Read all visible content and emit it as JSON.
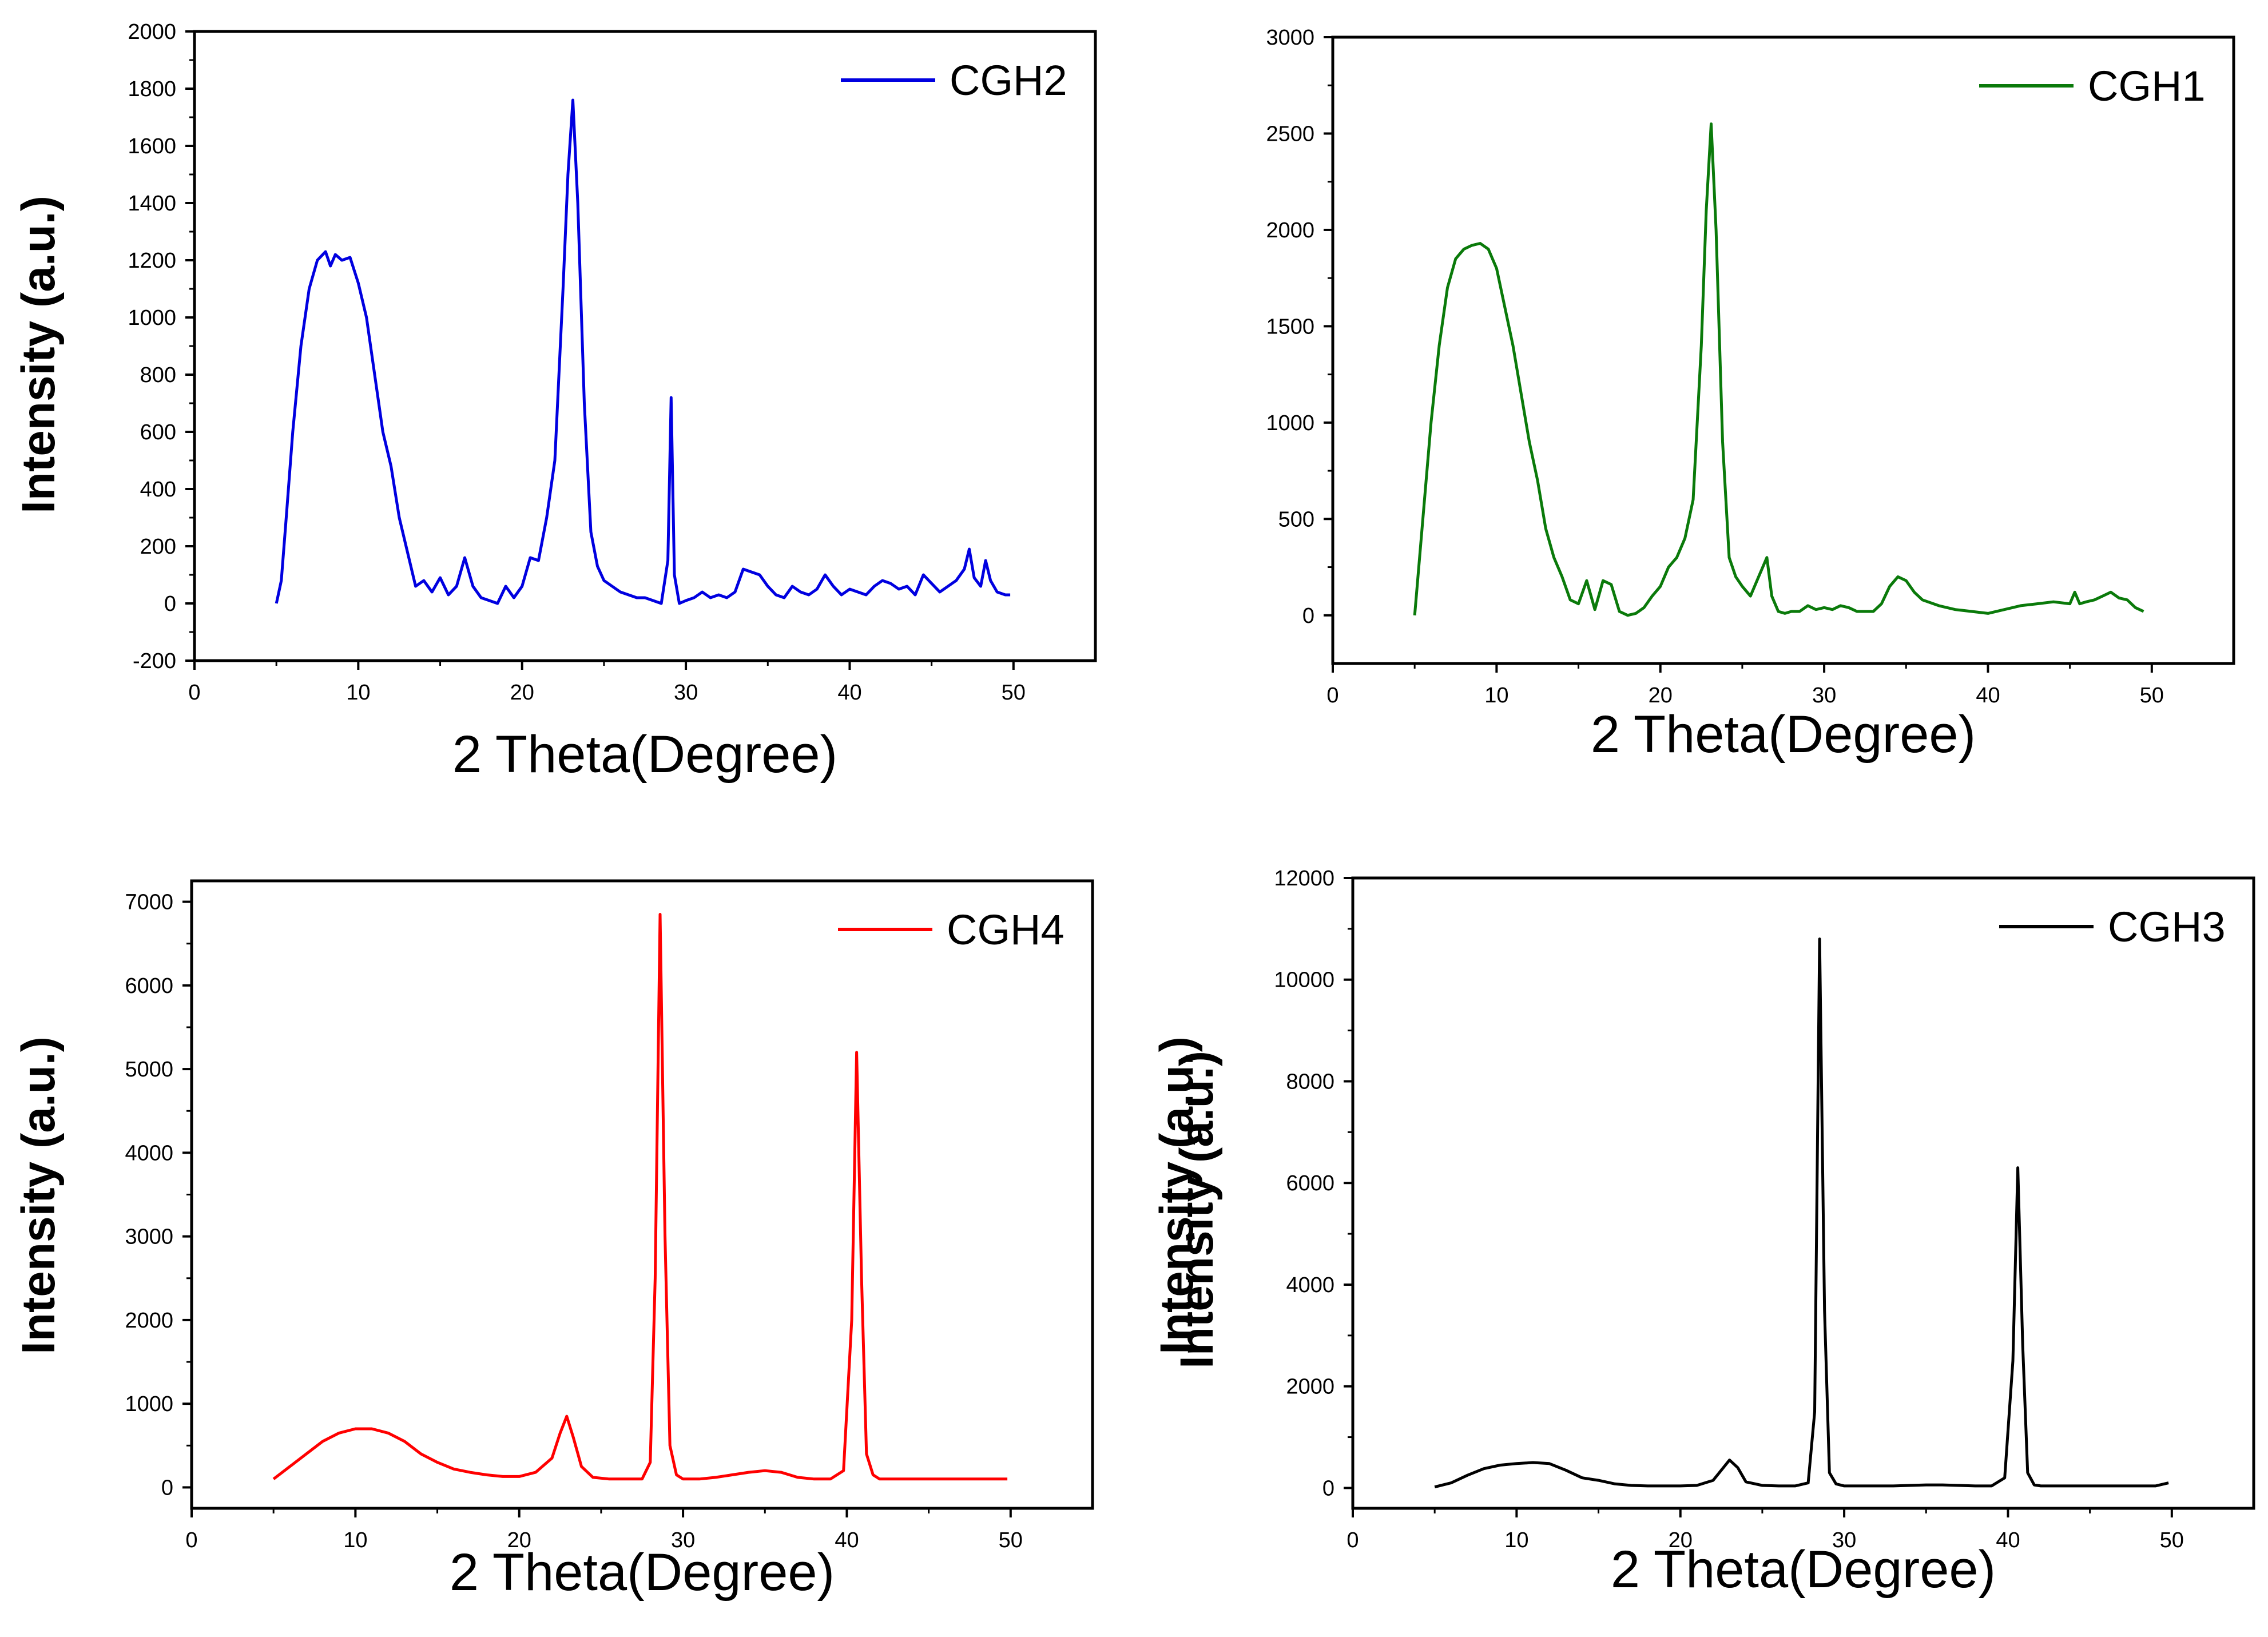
{
  "chart_data": [
    {
      "type": "line",
      "panel": "top-left",
      "legend": "CGH2",
      "color": "#0000e0",
      "xlabel": "2 Theta(Degree)",
      "ylabel": "Intensity (a.u.)",
      "xlim": [
        0,
        55
      ],
      "ylim": [
        -200,
        2000
      ],
      "xticks": [
        0,
        10,
        20,
        30,
        40,
        50
      ],
      "yticks": [
        -200,
        0,
        200,
        400,
        600,
        800,
        1000,
        1200,
        1400,
        1600,
        1800,
        2000
      ],
      "ytick_labels": [
        "-200",
        "0",
        "200",
        "400",
        "600",
        "800",
        "1000",
        "1200",
        "1400",
        "1600",
        "1800",
        "2000"
      ],
      "legend_position": "top-right",
      "x": [
        5.0,
        5.3,
        5.6,
        6.0,
        6.5,
        7.0,
        7.5,
        8.0,
        8.3,
        8.6,
        9.0,
        9.5,
        10.0,
        10.5,
        11.0,
        11.5,
        12.0,
        12.5,
        13.0,
        13.5,
        14.0,
        14.5,
        15.0,
        15.5,
        16.0,
        16.5,
        17.0,
        17.5,
        18.0,
        18.5,
        19.0,
        19.5,
        20.0,
        20.5,
        21.0,
        21.5,
        22.0,
        22.5,
        22.8,
        23.1,
        23.4,
        23.8,
        24.2,
        24.6,
        25.0,
        25.5,
        26.0,
        26.5,
        27.0,
        27.5,
        28.0,
        28.5,
        28.9,
        29.1,
        29.3,
        29.6,
        30.0,
        30.5,
        31.0,
        31.5,
        32.0,
        32.5,
        33.0,
        33.5,
        34.0,
        34.5,
        35.0,
        35.5,
        36.0,
        36.5,
        37.0,
        37.5,
        38.0,
        38.5,
        39.0,
        39.5,
        40.0,
        40.5,
        41.0,
        41.5,
        42.0,
        42.5,
        43.0,
        43.5,
        44.0,
        44.5,
        45.0,
        45.5,
        46.0,
        46.5,
        47.0,
        47.3,
        47.6,
        48.0,
        48.3,
        48.6,
        49.0,
        49.5,
        49.8
      ],
      "values": [
        0,
        80,
        300,
        600,
        900,
        1100,
        1200,
        1230,
        1180,
        1220,
        1200,
        1210,
        1120,
        1000,
        800,
        600,
        480,
        300,
        180,
        60,
        80,
        40,
        90,
        30,
        60,
        160,
        60,
        20,
        10,
        0,
        60,
        20,
        60,
        160,
        150,
        300,
        500,
        1100,
        1500,
        1760,
        1400,
        700,
        250,
        130,
        80,
        60,
        40,
        30,
        20,
        20,
        10,
        0,
        150,
        720,
        100,
        0,
        10,
        20,
        40,
        20,
        30,
        20,
        40,
        120,
        110,
        100,
        60,
        30,
        20,
        60,
        40,
        30,
        50,
        100,
        60,
        30,
        50,
        40,
        30,
        60,
        80,
        70,
        50,
        60,
        30,
        100,
        70,
        40,
        60,
        80,
        120,
        190,
        90,
        60,
        150,
        80,
        40,
        30,
        30
      ]
    },
    {
      "type": "line",
      "panel": "top-right",
      "legend": "CGH1",
      "color": "#0a7a0a",
      "xlabel": "2 Theta(Degree)",
      "ylabel": "Intensity (a.u.)",
      "xlim": [
        0,
        55
      ],
      "ylim": [
        -250,
        3000
      ],
      "xticks": [
        0,
        10,
        20,
        30,
        40,
        50
      ],
      "yticks": [
        0,
        500,
        1000,
        1500,
        2000,
        2500,
        3000
      ],
      "ytick_labels": [
        "0",
        "500",
        "1000",
        "1500",
        "2000",
        "2500",
        "3000"
      ],
      "legend_position": "top-right",
      "x": [
        5.0,
        5.5,
        6.0,
        6.5,
        7.0,
        7.5,
        8.0,
        8.5,
        9.0,
        9.5,
        10.0,
        10.5,
        11.0,
        11.5,
        12.0,
        12.5,
        13.0,
        13.5,
        14.0,
        14.5,
        15.0,
        15.5,
        16.0,
        16.5,
        17.0,
        17.5,
        18.0,
        18.5,
        19.0,
        19.5,
        20.0,
        20.5,
        21.0,
        21.5,
        22.0,
        22.5,
        22.8,
        23.1,
        23.4,
        23.8,
        24.2,
        24.6,
        25.0,
        25.5,
        26.0,
        26.5,
        26.8,
        27.2,
        27.6,
        28.0,
        28.5,
        29.0,
        29.5,
        30.0,
        30.5,
        31.0,
        31.5,
        32.0,
        32.5,
        33.0,
        33.5,
        34.0,
        34.5,
        35.0,
        35.5,
        36.0,
        37.0,
        38.0,
        39.0,
        40.0,
        41.0,
        42.0,
        43.0,
        44.0,
        45.0,
        45.3,
        45.6,
        46.0,
        46.5,
        47.0,
        47.5,
        48.0,
        48.5,
        49.0,
        49.5
      ],
      "values": [
        0,
        500,
        1000,
        1400,
        1700,
        1850,
        1900,
        1920,
        1930,
        1900,
        1800,
        1600,
        1400,
        1150,
        900,
        700,
        450,
        300,
        200,
        80,
        60,
        180,
        30,
        180,
        160,
        20,
        0,
        10,
        40,
        100,
        150,
        250,
        300,
        400,
        600,
        1400,
        2100,
        2550,
        2000,
        900,
        300,
        200,
        150,
        100,
        200,
        300,
        100,
        20,
        10,
        20,
        20,
        50,
        30,
        40,
        30,
        50,
        40,
        20,
        20,
        20,
        60,
        150,
        200,
        180,
        120,
        80,
        50,
        30,
        20,
        10,
        30,
        50,
        60,
        70,
        60,
        120,
        60,
        70,
        80,
        100,
        120,
        90,
        80,
        40,
        20
      ]
    },
    {
      "type": "line",
      "panel": "bottom-left",
      "legend": "CGH4",
      "color": "#ff0000",
      "xlabel": "2 Theta(Degree)",
      "ylabel": "Intensity (a.u.)",
      "xlim": [
        0,
        55
      ],
      "ylim": [
        -250,
        7250
      ],
      "xticks": [
        0,
        10,
        20,
        30,
        40,
        50
      ],
      "yticks": [
        0,
        1000,
        2000,
        3000,
        4000,
        5000,
        6000,
        7000
      ],
      "ytick_labels": [
        "0",
        "1000",
        "2000",
        "3000",
        "4000",
        "5000",
        "6000",
        "7000"
      ],
      "legend_position": "top-right",
      "x": [
        5.0,
        6.0,
        7.0,
        8.0,
        9.0,
        10.0,
        11.0,
        12.0,
        13.0,
        14.0,
        15.0,
        16.0,
        17.0,
        18.0,
        19.0,
        20.0,
        21.0,
        22.0,
        22.5,
        22.9,
        23.3,
        23.8,
        24.5,
        25.5,
        26.5,
        27.5,
        28.0,
        28.3,
        28.6,
        28.9,
        29.2,
        29.6,
        30.0,
        31.0,
        32.0,
        33.0,
        34.0,
        35.0,
        36.0,
        37.0,
        38.0,
        39.0,
        39.8,
        40.3,
        40.6,
        40.9,
        41.2,
        41.6,
        42.0,
        43.0,
        44.0,
        45.0,
        46.0,
        47.0,
        48.0,
        49.0,
        49.8
      ],
      "values": [
        100,
        250,
        400,
        550,
        650,
        700,
        700,
        650,
        550,
        400,
        300,
        220,
        180,
        150,
        130,
        130,
        180,
        350,
        650,
        850,
        600,
        250,
        120,
        100,
        100,
        100,
        300,
        2500,
        6850,
        3000,
        500,
        150,
        100,
        100,
        120,
        150,
        180,
        200,
        180,
        120,
        100,
        100,
        200,
        2000,
        5200,
        2500,
        400,
        150,
        100,
        100,
        100,
        100,
        100,
        100,
        100,
        100,
        100
      ]
    },
    {
      "type": "line",
      "panel": "bottom-right",
      "legend": "CGH3",
      "color": "#000000",
      "xlabel": "2 Theta(Degree)",
      "ylabel": "Intensity (a.u.)",
      "xlim": [
        0,
        55
      ],
      "ylim": [
        -400,
        12000
      ],
      "xticks": [
        0,
        10,
        20,
        30,
        40,
        50
      ],
      "yticks": [
        0,
        2000,
        4000,
        6000,
        8000,
        10000,
        12000
      ],
      "ytick_labels": [
        "0",
        "2000",
        "4000",
        "6000",
        "8000",
        "10000",
        "12000"
      ],
      "legend_position": "top-right",
      "x": [
        5.0,
        6.0,
        7.0,
        8.0,
        9.0,
        10.0,
        11.0,
        12.0,
        13.0,
        14.0,
        15.0,
        16.0,
        17.0,
        18.0,
        19.0,
        20.0,
        21.0,
        22.0,
        22.5,
        23.0,
        23.5,
        24.0,
        25.0,
        26.0,
        27.0,
        27.8,
        28.2,
        28.5,
        28.8,
        29.1,
        29.5,
        30.0,
        31.0,
        32.0,
        33.0,
        34.0,
        35.0,
        36.0,
        37.0,
        38.0,
        39.0,
        39.8,
        40.3,
        40.6,
        40.9,
        41.2,
        41.6,
        42.0,
        43.0,
        44.0,
        45.0,
        46.0,
        47.0,
        48.0,
        49.0,
        49.8
      ],
      "values": [
        20,
        100,
        250,
        380,
        450,
        480,
        500,
        480,
        350,
        200,
        150,
        80,
        50,
        40,
        40,
        40,
        50,
        150,
        350,
        550,
        400,
        120,
        50,
        40,
        40,
        100,
        1500,
        10800,
        3500,
        300,
        80,
        40,
        40,
        40,
        40,
        50,
        60,
        60,
        50,
        40,
        40,
        200,
        2500,
        6300,
        2800,
        300,
        60,
        40,
        40,
        40,
        40,
        40,
        40,
        40,
        40,
        100
      ]
    }
  ]
}
